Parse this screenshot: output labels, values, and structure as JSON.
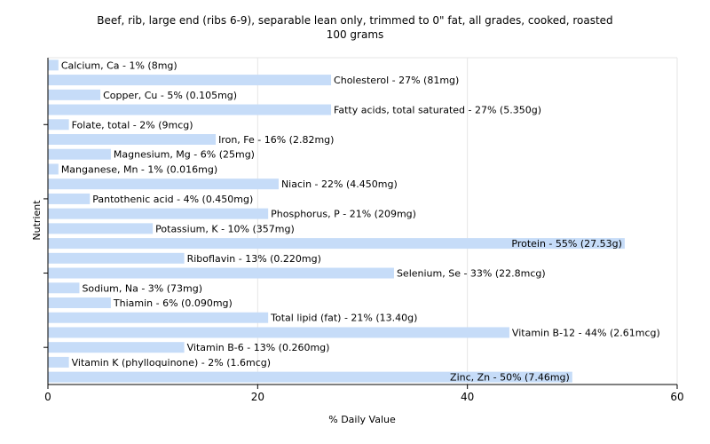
{
  "chart_data": {
    "type": "bar",
    "orientation": "horizontal",
    "title": "Beef, rib, large end (ribs 6-9), separable lean only, trimmed to 0\" fat, all grades, cooked, roasted",
    "subtitle": "100 grams",
    "xlabel": "% Daily Value",
    "ylabel": "Nutrient",
    "xlim": [
      0,
      60
    ],
    "xticks": [
      "0",
      "20",
      "40",
      "60"
    ],
    "grid": true,
    "bar_color": "#c6dcf8",
    "categories": [
      "Calcium, Ca",
      "Cholesterol",
      "Copper, Cu",
      "Fatty acids, total saturated",
      "Folate, total",
      "Iron, Fe",
      "Magnesium, Mg",
      "Manganese, Mn",
      "Niacin",
      "Pantothenic acid",
      "Phosphorus, P",
      "Potassium, K",
      "Protein",
      "Riboflavin",
      "Selenium, Se",
      "Sodium, Na",
      "Thiamin",
      "Total lipid (fat)",
      "Vitamin B-12",
      "Vitamin B-6",
      "Vitamin K (phylloquinone)",
      "Zinc, Zn"
    ],
    "values": [
      1,
      27,
      5,
      27,
      2,
      16,
      6,
      1,
      22,
      4,
      21,
      10,
      55,
      13,
      33,
      3,
      6,
      21,
      44,
      13,
      2,
      50
    ],
    "labels": [
      "Calcium, Ca - 1% (8mg)",
      "Cholesterol - 27% (81mg)",
      "Copper, Cu - 5% (0.105mg)",
      "Fatty acids, total saturated - 27% (5.350g)",
      "Folate, total - 2% (9mcg)",
      "Iron, Fe - 16% (2.82mg)",
      "Magnesium, Mg - 6% (25mg)",
      "Manganese, Mn - 1% (0.016mg)",
      "Niacin - 22% (4.450mg)",
      "Pantothenic acid - 4% (0.450mg)",
      "Phosphorus, P - 21% (209mg)",
      "Potassium, K - 10% (357mg)",
      "Protein - 55% (27.53g)",
      "Riboflavin - 13% (0.220mg)",
      "Selenium, Se - 33% (22.8mcg)",
      "Sodium, Na - 3% (73mg)",
      "Thiamin - 6% (0.090mg)",
      "Total lipid (fat) - 21% (13.40g)",
      "Vitamin B-12 - 44% (2.61mcg)",
      "Vitamin B-6 - 13% (0.260mg)",
      "Vitamin K (phylloquinone) - 2% (1.6mcg)",
      "Zinc, Zn - 50% (7.46mg)"
    ]
  }
}
